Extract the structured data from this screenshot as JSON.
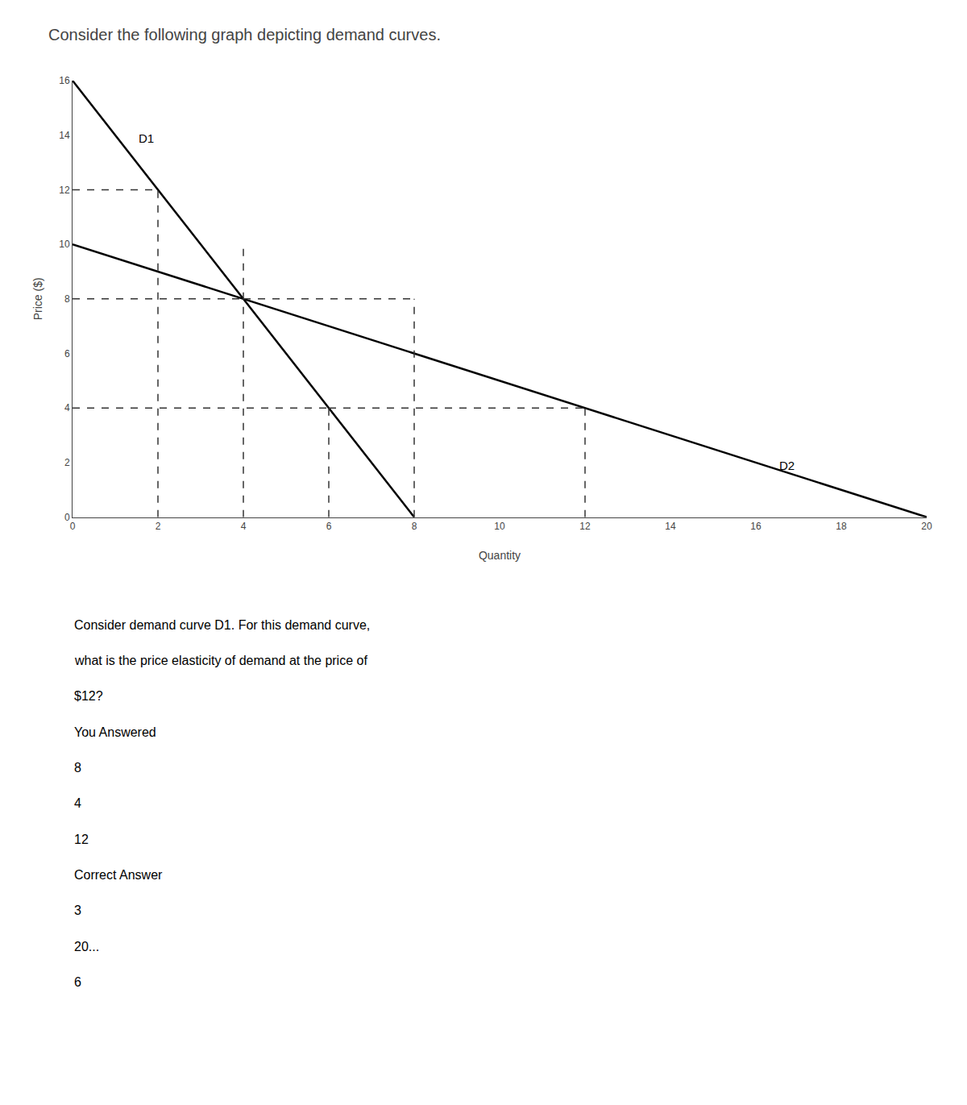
{
  "chart_data": {
    "type": "line",
    "title": "Consider the following graph depicting demand curves.",
    "x_label": "Quantity",
    "y_label": "Price ($)",
    "xlim": [
      0,
      20
    ],
    "ylim": [
      0,
      16
    ],
    "xticks": [
      0,
      2,
      4,
      6,
      8,
      10,
      12,
      14,
      16,
      18,
      20
    ],
    "yticks": [
      0,
      2,
      4,
      6,
      8,
      10,
      12,
      14,
      16
    ],
    "grid": false,
    "series": [
      {
        "x": [
          0,
          8
        ],
        "values": [
          16,
          0
        ],
        "color": "#000000",
        "line_style": "solid"
      },
      {
        "x": [
          0,
          20
        ],
        "values": [
          10,
          0
        ],
        "color": "#000000",
        "line_style": "solid"
      },
      {
        "x": [
          0,
          2
        ],
        "values": [
          12,
          12
        ],
        "color": "#333333",
        "line_style": "dash"
      },
      {
        "x": [
          2,
          2
        ],
        "values": [
          0,
          12
        ],
        "color": "#333333",
        "line_style": "dash"
      },
      {
        "x": [
          0,
          4
        ],
        "values": [
          8,
          8
        ],
        "color": "#333333",
        "line_style": "dash"
      },
      {
        "x": [
          4,
          4
        ],
        "values": [
          0,
          10
        ],
        "color": "#333333",
        "line_style": "dash"
      },
      {
        "x": [
          4,
          8
        ],
        "values": [
          8,
          8
        ],
        "color": "#333333",
        "line_style": "dash"
      },
      {
        "x": [
          8,
          8
        ],
        "values": [
          0,
          8
        ],
        "color": "#333333",
        "line_style": "dash"
      },
      {
        "x": [
          0,
          6
        ],
        "values": [
          4,
          4
        ],
        "color": "#333333",
        "line_style": "dash"
      },
      {
        "x": [
          6,
          6
        ],
        "values": [
          0,
          4
        ],
        "color": "#333333",
        "line_style": "dash"
      },
      {
        "x": [
          6,
          12
        ],
        "values": [
          4,
          4
        ],
        "color": "#333333",
        "line_style": "dash"
      },
      {
        "x": [
          12,
          12
        ],
        "values": [
          0,
          4
        ],
        "color": "#333333",
        "line_style": "dash"
      }
    ],
    "annotations": [
      {
        "text": "D1",
        "x": 1.5,
        "y": 14.2
      },
      {
        "text": "D2",
        "x": 16.5,
        "y": 2.2
      },
      {
        "text": "Consider demand curve D1. For this demand curve,"
      },
      {
        "text": "what is the price elasticity of demand at the price of"
      },
      {
        "text": "$12?"
      },
      {
        "text": "You Answered"
      },
      {
        "text": "8"
      },
      {
        "text": "4"
      },
      {
        "text": "12"
      },
      {
        "text": "Correct Answer"
      },
      {
        "text": "3"
      },
      {
        "text": "20..."
      },
      {
        "text": "6"
      }
    ]
  }
}
